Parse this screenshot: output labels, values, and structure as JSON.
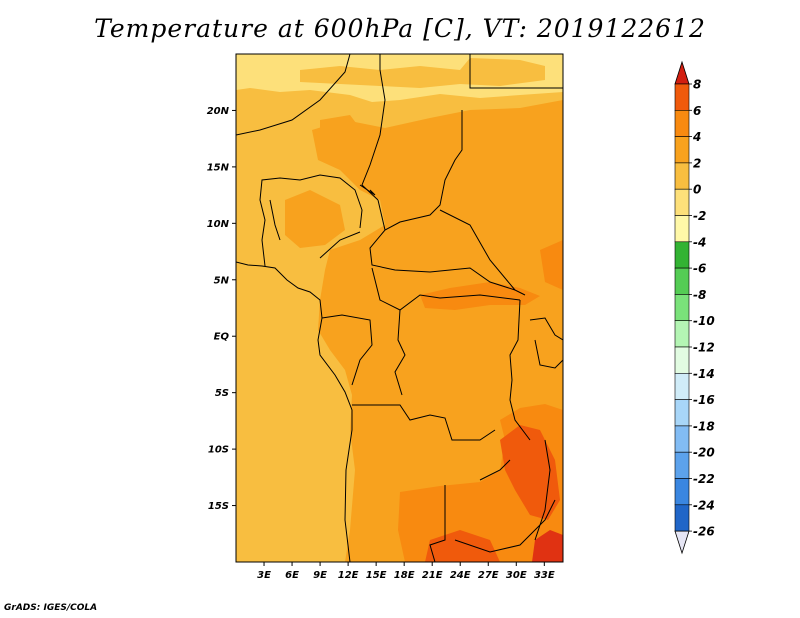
{
  "title": "Temperature at 600hPa [C], VT: 2019122612",
  "credit": "GrADS: IGES/COLA",
  "map": {
    "lon_range": [
      0,
      35
    ],
    "lat_range": [
      -20,
      25
    ],
    "x_ticks": [
      {
        "lon": 3,
        "label": "3E"
      },
      {
        "lon": 6,
        "label": "6E"
      },
      {
        "lon": 9,
        "label": "9E"
      },
      {
        "lon": 12,
        "label": "12E"
      },
      {
        "lon": 15,
        "label": "15E"
      },
      {
        "lon": 18,
        "label": "18E"
      },
      {
        "lon": 21,
        "label": "21E"
      },
      {
        "lon": 24,
        "label": "24E"
      },
      {
        "lon": 27,
        "label": "27E"
      },
      {
        "lon": 30,
        "label": "30E"
      },
      {
        "lon": 33,
        "label": "33E"
      }
    ],
    "y_ticks": [
      {
        "lat": 20,
        "label": "20N"
      },
      {
        "lat": 15,
        "label": "15N"
      },
      {
        "lat": 10,
        "label": "10N"
      },
      {
        "lat": 5,
        "label": "5N"
      },
      {
        "lat": 0,
        "label": "EQ"
      },
      {
        "lat": -5,
        "label": "5S"
      },
      {
        "lat": -10,
        "label": "10S"
      },
      {
        "lat": -15,
        "label": "15S"
      }
    ]
  },
  "colorbar": {
    "labels": [
      "8",
      "6",
      "4",
      "2",
      "0",
      "-2",
      "-4",
      "-6",
      "-8",
      "-10",
      "-12",
      "-14",
      "-16",
      "-18",
      "-20",
      "-22",
      "-24",
      "-26"
    ],
    "colors": [
      "#e03212",
      "#f05a0c",
      "#f88a10",
      "#f8a21e",
      "#f8be40",
      "#fde07a",
      "#fff8a8",
      "#33b333",
      "#54cc54",
      "#7ae27a",
      "#b4f5b4",
      "#e2fce2",
      "#d0ecf8",
      "#a8d6f8",
      "#82bcf4",
      "#5ca2ec",
      "#3a86e0",
      "#2066c8",
      "#1048a8",
      "#08287a"
    ],
    "top_arrow_color": "#d21e10",
    "bottom_arrow_color": "#e6e6f5"
  },
  "temperature_colors": {
    "c_neg2_0": "#fde07a",
    "c_0_2": "#f8be40",
    "c_2_4": "#f8a21e",
    "c_4_6": "#f88a10",
    "c_6_8": "#f05a0c",
    "c_8_plus": "#e03212"
  }
}
